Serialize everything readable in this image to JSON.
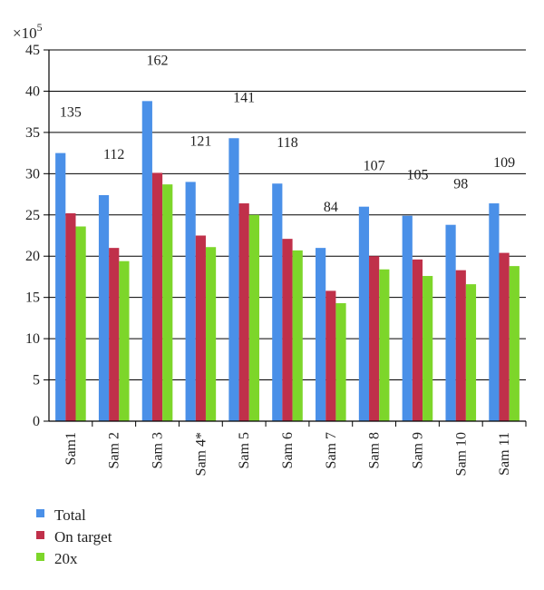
{
  "chart_data": {
    "type": "bar",
    "scale_label": "×10",
    "scale_exponent": "5",
    "categories": [
      "Sam1",
      "Sam 2",
      "Sam 3",
      "Sam 4*",
      "Sam 5",
      "Sam 6",
      "Sam 7",
      "Sam 8",
      "Sam 9",
      "Sam 10",
      "Sam 11"
    ],
    "series": [
      {
        "name": "Total",
        "color": "#4a90e8",
        "values": [
          32.5,
          27.4,
          38.8,
          29.0,
          34.3,
          28.8,
          21.0,
          26.0,
          24.9,
          23.8,
          26.4
        ]
      },
      {
        "name": "On target",
        "color": "#c0304a",
        "values": [
          25.2,
          21.0,
          30.1,
          22.5,
          26.4,
          22.1,
          15.8,
          20.0,
          19.6,
          18.3,
          20.4
        ]
      },
      {
        "name": "20x",
        "color": "#7dd62a",
        "values": [
          23.6,
          19.4,
          28.7,
          21.1,
          25.0,
          20.7,
          14.3,
          18.4,
          17.6,
          16.6,
          18.8
        ]
      }
    ],
    "annotations": [
      "135",
      "112",
      "162",
      "121",
      "141",
      "118",
      "84",
      "107",
      "105",
      "98",
      "109"
    ],
    "yticks": [
      "0",
      "5",
      "10",
      "15",
      "20",
      "25",
      "30",
      "35",
      "40",
      "45"
    ],
    "ylim": [
      0,
      45
    ],
    "grid": true,
    "legend_position": "bottom-left"
  }
}
